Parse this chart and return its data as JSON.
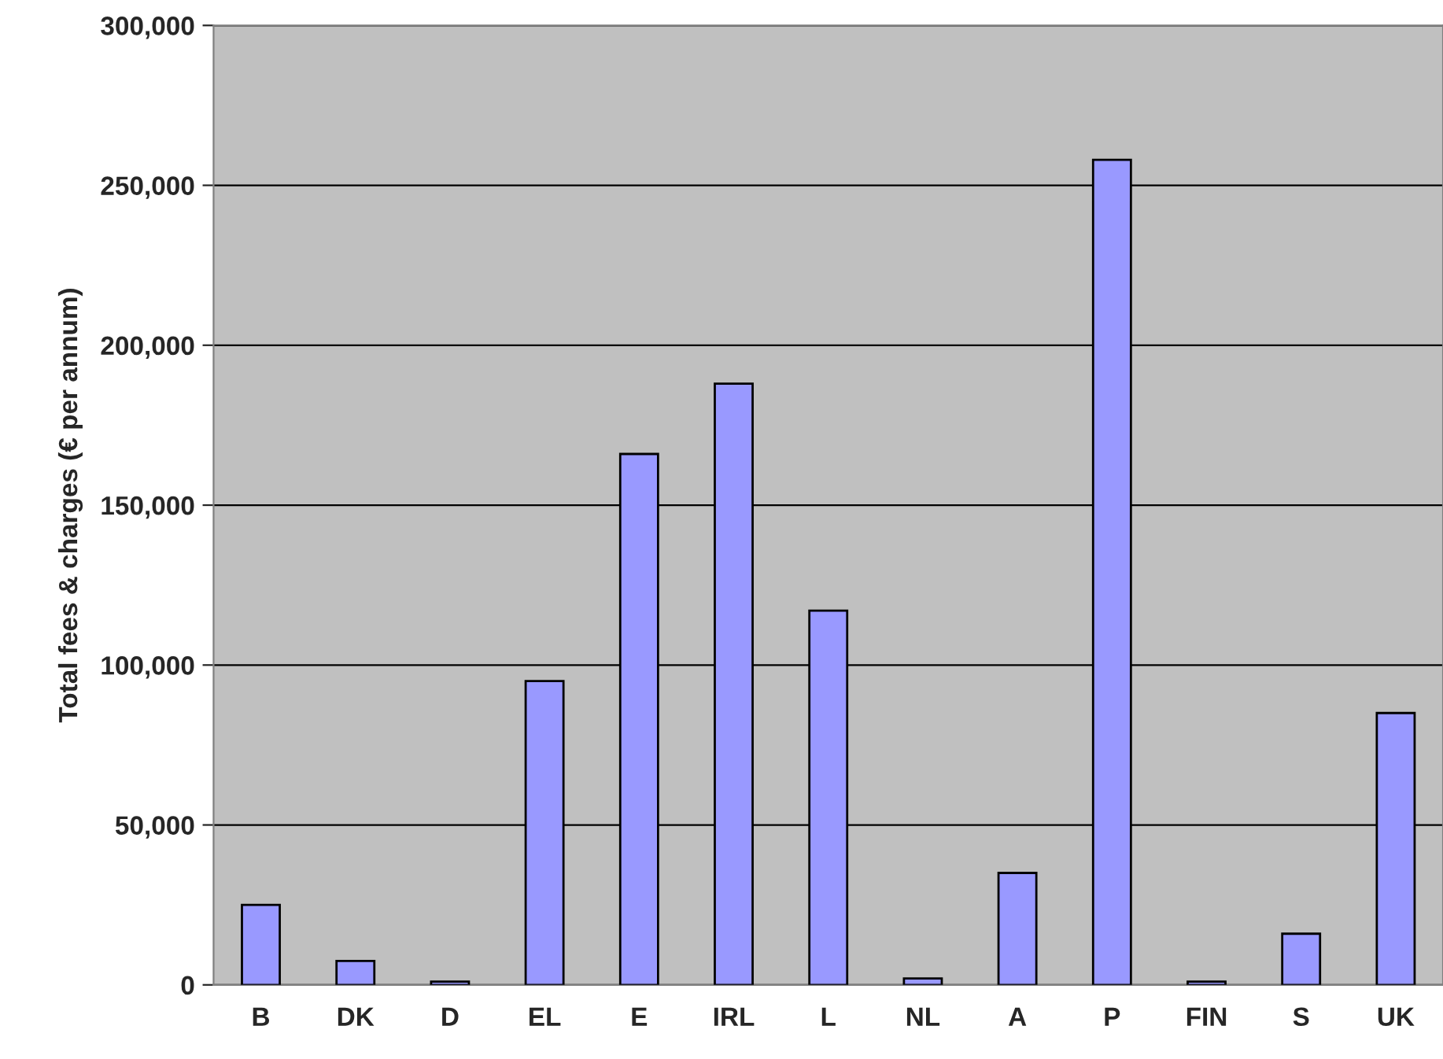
{
  "chart_data": {
    "type": "bar",
    "ylabel": "Total fees & charges (€ per annum)",
    "categories": [
      "B",
      "DK",
      "D",
      "EL",
      "E",
      "IRL",
      "L",
      "NL",
      "A",
      "P",
      "FIN",
      "S",
      "UK"
    ],
    "values": [
      25000,
      7500,
      1000,
      95000,
      166000,
      188000,
      117000,
      2000,
      35000,
      258000,
      1000,
      16000,
      85000
    ],
    "color": "#9999ff",
    "ylim": [
      0,
      300000
    ],
    "yticks": [
      {
        "value": 0,
        "label": "0"
      },
      {
        "value": 50000,
        "label": "50,000"
      },
      {
        "value": 100000,
        "label": "100,000"
      },
      {
        "value": 150000,
        "label": "150,000"
      },
      {
        "value": 200000,
        "label": "200,000"
      },
      {
        "value": 250000,
        "label": "250,000"
      },
      {
        "value": 300000,
        "label": "300,000"
      }
    ],
    "grid": "y"
  }
}
